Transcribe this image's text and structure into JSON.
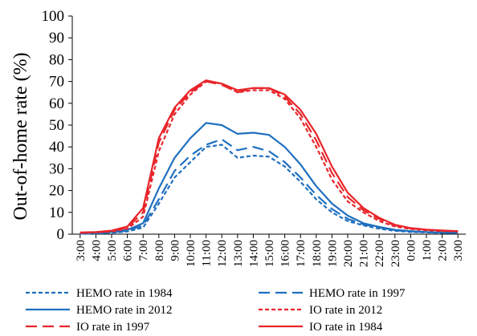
{
  "chart_data": {
    "type": "line",
    "title": "",
    "xlabel": "",
    "ylabel": "Out-of-home rate (%)",
    "ylim": [
      0,
      100
    ],
    "yticks": [
      0,
      10,
      20,
      30,
      40,
      50,
      60,
      70,
      80,
      90,
      100
    ],
    "xticks": [
      "3:00",
      "4:00",
      "5:00",
      "6:00",
      "7:00",
      "8:00",
      "9:00",
      "10:00",
      "11:00",
      "12:00",
      "13:00",
      "14:00",
      "15:00",
      "16:00",
      "17:00",
      "18:00",
      "19:00",
      "20:00",
      "21:00",
      "22:00",
      "23:00",
      "0:00",
      "1:00",
      "2:00",
      "3:00"
    ],
    "grid": false,
    "legend_position": "bottom",
    "series": [
      {
        "name": "HEMO rate in 1984",
        "color": "#1f6fbf",
        "dash": "dotted",
        "values": [
          0.2,
          0.3,
          0.6,
          1.2,
          3,
          14,
          26,
          33,
          40,
          41,
          35,
          36,
          35.5,
          31,
          24,
          16,
          10,
          6,
          4,
          2.5,
          1.5,
          1,
          0.8,
          0.6,
          0.5
        ]
      },
      {
        "name": "HEMO rate in 1997",
        "color": "#1f6fbf",
        "dash": "long-dash",
        "values": [
          0.3,
          0.4,
          0.8,
          1.5,
          4,
          16,
          29,
          36,
          41,
          43.5,
          38.5,
          40,
          38,
          33,
          26,
          18,
          11.5,
          7,
          4.5,
          3,
          1.8,
          1.2,
          0.9,
          0.7,
          0.6
        ]
      },
      {
        "name": "HEMO rate in 2012",
        "color": "#1f6fbf",
        "dash": "solid",
        "values": [
          0.4,
          0.6,
          1,
          2,
          5,
          21,
          35,
          44,
          51,
          50,
          46,
          46.5,
          45.5,
          40,
          32,
          22,
          14,
          8.5,
          5,
          3.3,
          2,
          1.4,
          1,
          0.8,
          0.7
        ]
      },
      {
        "name": "IO rate in 2012",
        "color": "#e8252a",
        "dash": "dotted",
        "values": [
          0.6,
          0.8,
          1.2,
          2.5,
          8,
          38,
          55,
          64,
          70,
          69,
          65,
          66,
          66,
          62,
          53,
          40,
          25,
          15,
          10,
          6,
          3.5,
          2.4,
          1.8,
          1.4,
          1.2
        ]
      },
      {
        "name": "IO rate in 1997",
        "color": "#e8252a",
        "dash": "long-dash",
        "values": [
          0.7,
          0.9,
          1.4,
          3,
          10,
          42,
          57,
          65,
          70,
          68.5,
          65,
          67,
          67,
          63,
          55,
          43,
          28,
          17,
          11,
          7,
          4,
          2.6,
          2,
          1.6,
          1.3
        ]
      },
      {
        "name": "IO rate in 1984",
        "color": "#e8252a",
        "dash": "solid",
        "values": [
          0.8,
          1,
          1.6,
          3.5,
          12,
          44,
          58,
          66,
          70.5,
          69,
          66,
          67,
          67,
          64,
          57,
          46,
          31,
          19,
          12,
          7.5,
          4.3,
          2.8,
          2.1,
          1.7,
          1.4
        ]
      }
    ]
  }
}
